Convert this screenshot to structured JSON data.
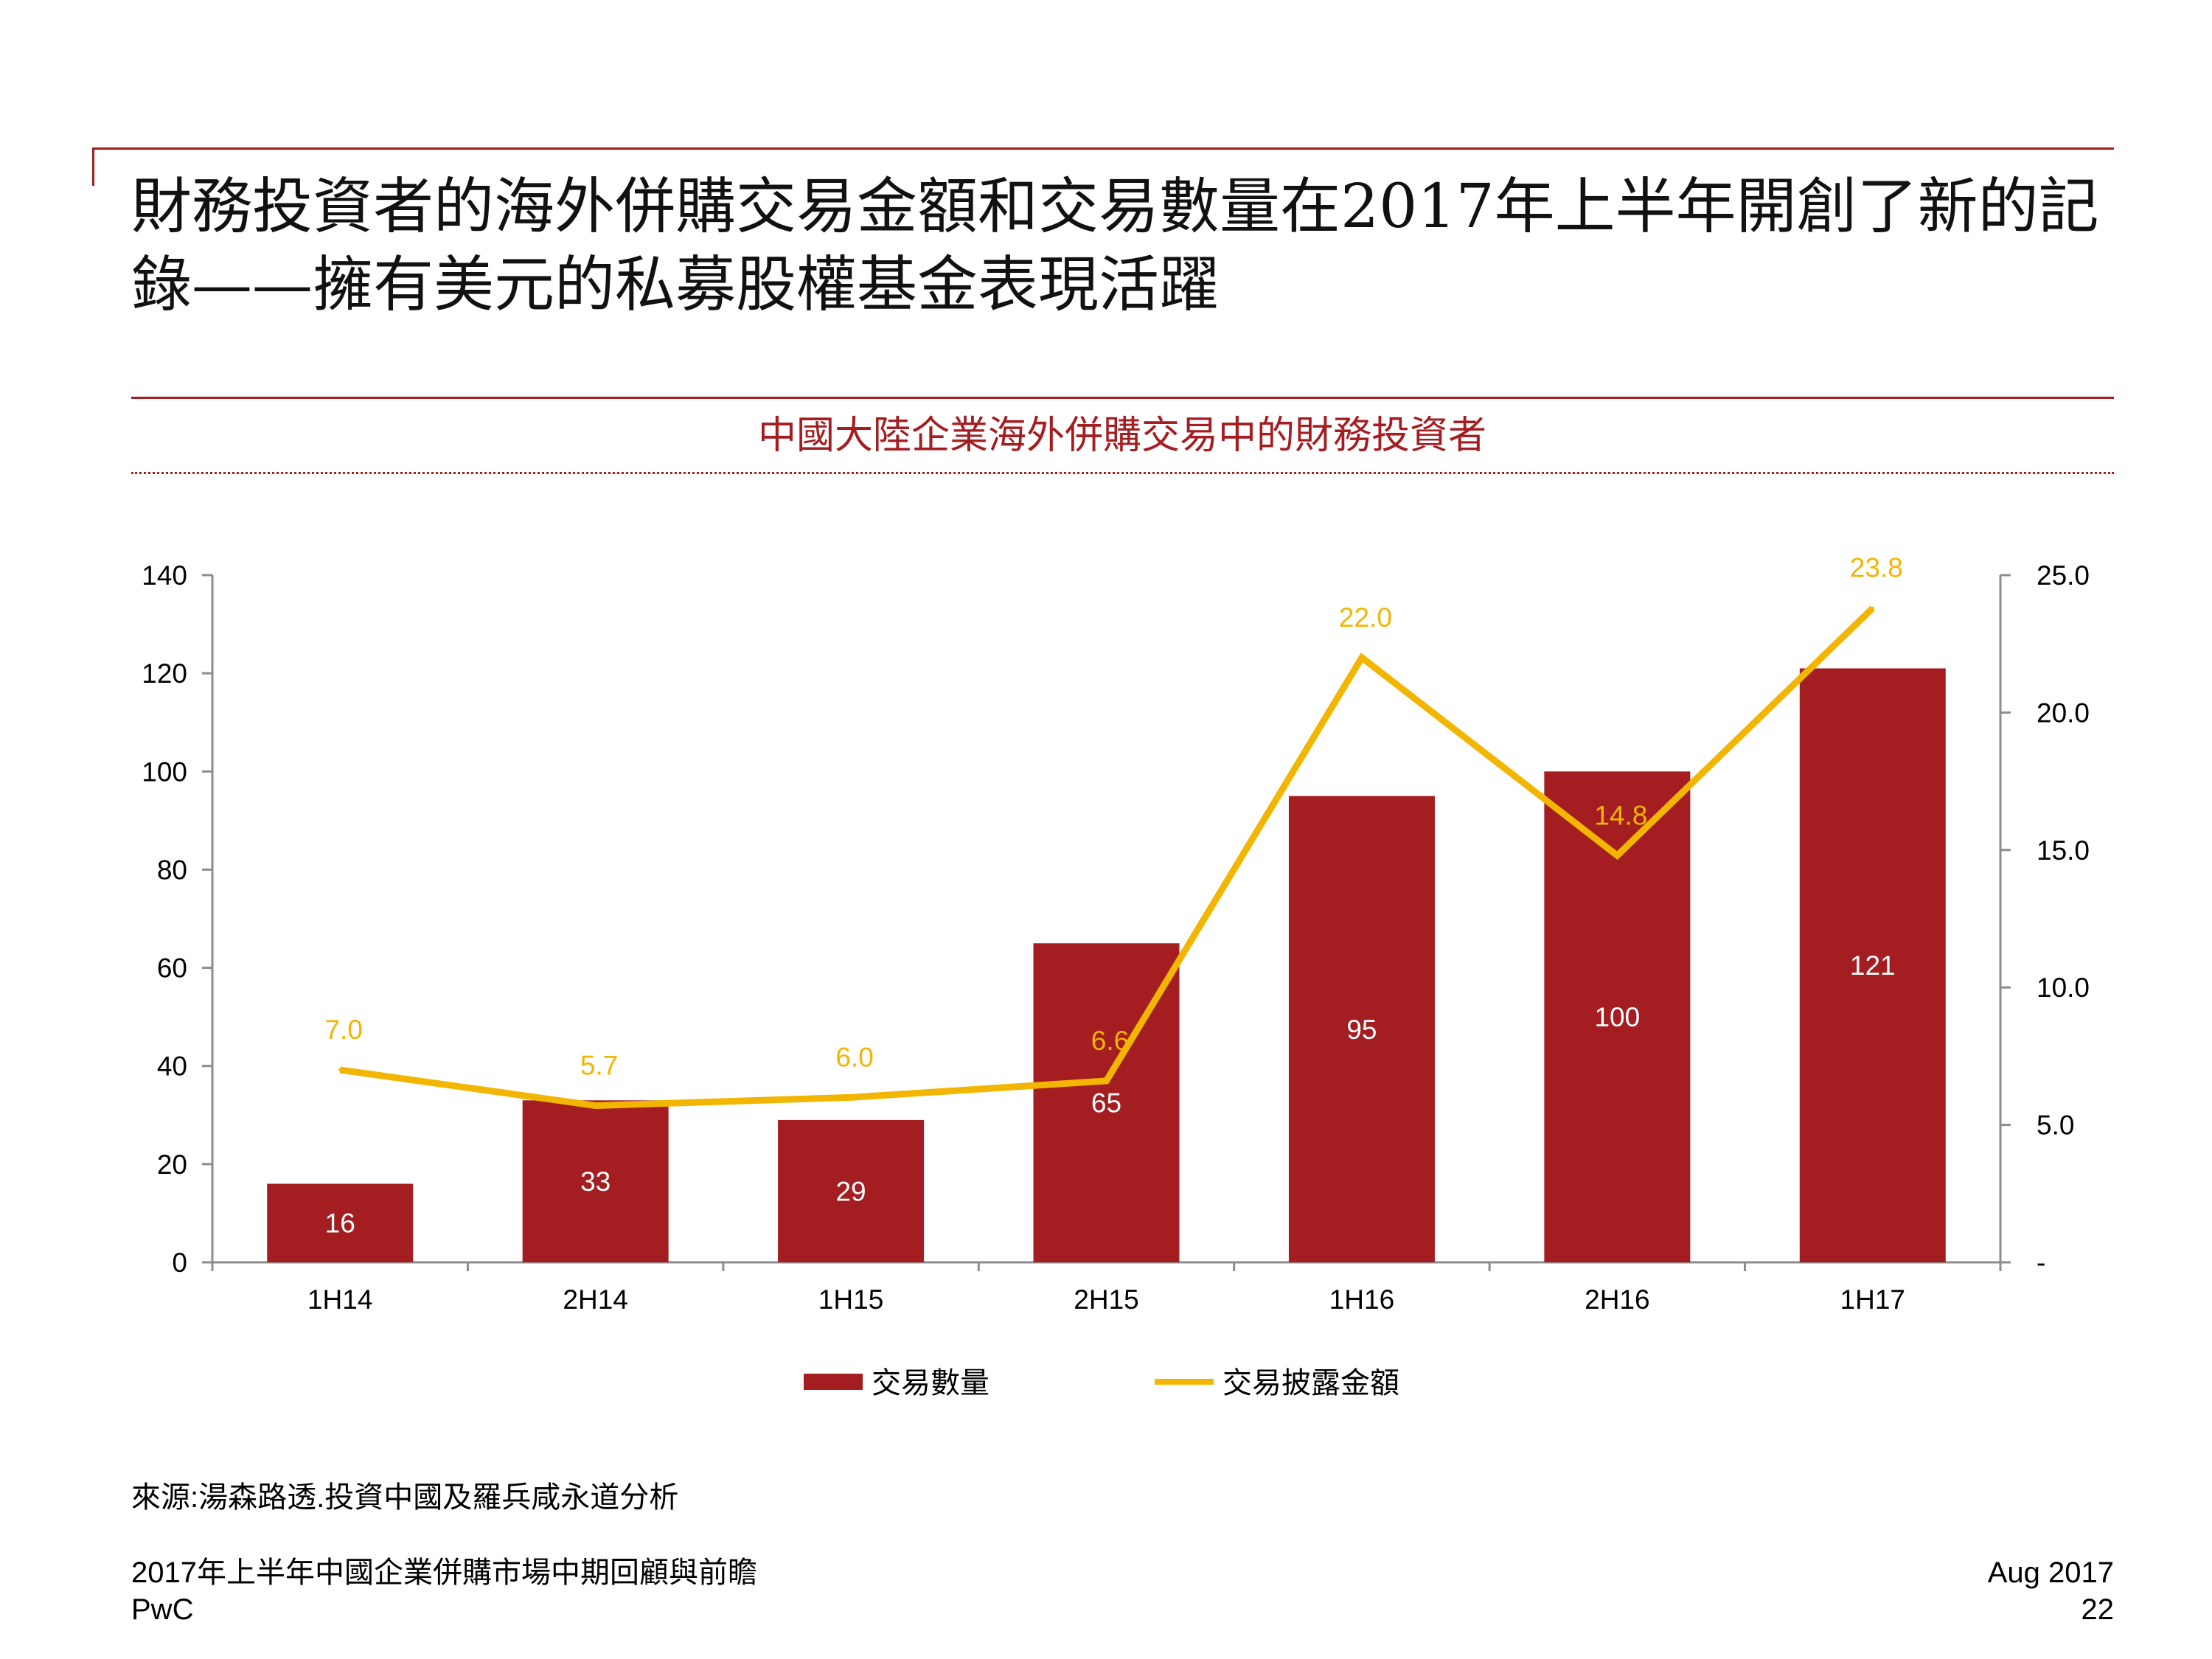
{
  "slide": {
    "title": "財務投資者的海外併購交易金額和交易數量在2017年上半年開創了新的記錄——擁有美元的私募股權基金表現活躍",
    "source": "來源:湯森路透.投資中國及羅兵咸永道分析",
    "footer_report": "2017年上半年中國企業併購市場中期回顧與前瞻",
    "footer_company": "PwC",
    "footer_date": "Aug 2017",
    "page_number": "22"
  },
  "colors": {
    "accent": "#a31d21",
    "bar": "#a31d21",
    "line": "#f2b600"
  },
  "chart_data": {
    "type": "bar",
    "title": "中國大陸企業海外併購交易中的財務投資者",
    "categories": [
      "1H14",
      "2H14",
      "1H15",
      "2H15",
      "1H16",
      "2H16",
      "1H17"
    ],
    "series": [
      {
        "name": "交易數量",
        "type": "bar",
        "axis": "left",
        "values": [
          16,
          33,
          29,
          65,
          95,
          100,
          121
        ],
        "labels": [
          "16",
          "33",
          "29",
          "65",
          "95",
          "100",
          "121"
        ]
      },
      {
        "name": "交易披露金額",
        "type": "line",
        "axis": "right",
        "values": [
          7.0,
          5.7,
          6.0,
          6.6,
          22.0,
          14.8,
          23.8
        ],
        "labels": [
          "7.0",
          "5.7",
          "6.0",
          "6.6",
          "22.0",
          "14.8",
          "23.8"
        ]
      }
    ],
    "y_left": {
      "range": [
        0,
        140
      ],
      "ticks": [
        "0",
        "20",
        "40",
        "60",
        "80",
        "100",
        "120",
        "140"
      ]
    },
    "y_right": {
      "range": [
        0,
        25
      ],
      "ticks": [
        "-",
        "5.0",
        "10.0",
        "15.0",
        "20.0",
        "25.0"
      ]
    },
    "grid": false,
    "legend_position": "bottom-center"
  }
}
